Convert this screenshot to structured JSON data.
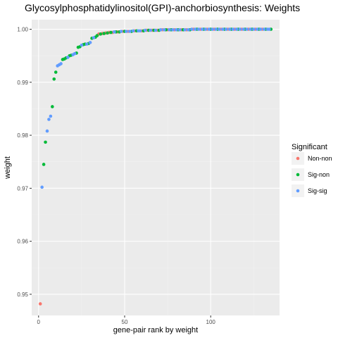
{
  "chart_data": {
    "type": "scatter",
    "title": "Glycosylphosphatidylinositol(GPI)-anchorbiosynthesis: Weights",
    "xlabel": "gene-pair rank by weight",
    "ylabel": "weight",
    "xlim": [
      -4,
      140
    ],
    "ylim": [
      0.946,
      1.0018
    ],
    "x_ticks": [
      0,
      50,
      100
    ],
    "x_tick_labels": [
      "0",
      "50",
      "100"
    ],
    "y_ticks": [
      0.95,
      0.96,
      0.97,
      0.98,
      0.99,
      1.0
    ],
    "y_tick_labels": [
      "0.95",
      "0.96",
      "0.97",
      "0.98",
      "0.99",
      "1.00"
    ],
    "grid": true,
    "legend": {
      "title": "Significant",
      "position": "right",
      "entries": [
        {
          "name": "Non-non",
          "color": "#F8766D"
        },
        {
          "name": "Sig-non",
          "color": "#00BA38"
        },
        {
          "name": "Sig-sig",
          "color": "#619CFF"
        }
      ]
    },
    "series": [
      {
        "name": "Non-non",
        "color": "#F8766D",
        "points": [
          [
            1,
            0.9482
          ],
          [
            35,
            0.9991
          ],
          [
            37,
            0.9992
          ],
          [
            39,
            0.9993
          ],
          [
            41,
            0.9994
          ],
          [
            43,
            0.9994
          ],
          [
            46,
            0.9995
          ],
          [
            49,
            0.9996
          ],
          [
            52,
            0.9996
          ],
          [
            56,
            0.9997
          ],
          [
            60,
            0.9997
          ],
          [
            63,
            0.9998
          ],
          [
            66,
            0.9998
          ],
          [
            69,
            0.9998
          ],
          [
            72,
            0.9999
          ],
          [
            75,
            0.9999
          ],
          [
            79,
            0.9999
          ],
          [
            83,
            0.9999
          ],
          [
            86,
            0.9999
          ],
          [
            90,
            1.0
          ],
          [
            94,
            1.0
          ],
          [
            98,
            1.0
          ],
          [
            102,
            1.0
          ],
          [
            106,
            1.0
          ],
          [
            110,
            1.0
          ],
          [
            114,
            1.0
          ],
          [
            118,
            1.0
          ],
          [
            122,
            1.0
          ],
          [
            126,
            1.0
          ],
          [
            130,
            1.0
          ]
        ]
      },
      {
        "name": "Sig-non",
        "color": "#00BA38",
        "points": [
          [
            3,
            0.9745
          ],
          [
            4,
            0.9787
          ],
          [
            8,
            0.9854
          ],
          [
            9,
            0.9906
          ],
          [
            10,
            0.9919
          ],
          [
            14,
            0.9943
          ],
          [
            15,
            0.9944
          ],
          [
            16,
            0.9946
          ],
          [
            18,
            0.995
          ],
          [
            19,
            0.9951
          ],
          [
            22,
            0.9955
          ],
          [
            23,
            0.9966
          ],
          [
            24,
            0.9967
          ],
          [
            26,
            0.9971
          ],
          [
            27,
            0.9972
          ],
          [
            29,
            0.9973
          ],
          [
            31,
            0.9983
          ],
          [
            33,
            0.9985
          ],
          [
            34,
            0.9988
          ],
          [
            36,
            0.9991
          ],
          [
            38,
            0.9992
          ],
          [
            40,
            0.9993
          ],
          [
            42,
            0.9994
          ],
          [
            45,
            0.9995
          ],
          [
            47,
            0.9995
          ],
          [
            50,
            0.9996
          ],
          [
            54,
            0.9996
          ],
          [
            57,
            0.9997
          ],
          [
            61,
            0.9997
          ],
          [
            64,
            0.9998
          ],
          [
            67,
            0.9998
          ],
          [
            70,
            0.9998
          ],
          [
            74,
            0.9999
          ],
          [
            77,
            0.9999
          ],
          [
            81,
            0.9999
          ],
          [
            84,
            0.9999
          ],
          [
            88,
            0.9999
          ],
          [
            92,
            1.0
          ],
          [
            96,
            1.0
          ],
          [
            100,
            1.0
          ],
          [
            104,
            1.0
          ],
          [
            108,
            1.0
          ],
          [
            112,
            1.0
          ],
          [
            116,
            1.0
          ],
          [
            120,
            1.0
          ],
          [
            124,
            1.0
          ],
          [
            128,
            1.0
          ],
          [
            132,
            1.0
          ],
          [
            135,
            1.0
          ]
        ]
      },
      {
        "name": "Sig-sig",
        "color": "#619CFF",
        "points": [
          [
            2,
            0.9702
          ],
          [
            5,
            0.9808
          ],
          [
            6,
            0.983
          ],
          [
            7,
            0.9836
          ],
          [
            11,
            0.9931
          ],
          [
            12,
            0.9933
          ],
          [
            13,
            0.9935
          ],
          [
            17,
            0.9947
          ],
          [
            20,
            0.9952
          ],
          [
            21,
            0.9954
          ],
          [
            25,
            0.997
          ],
          [
            28,
            0.9972
          ],
          [
            30,
            0.9975
          ],
          [
            32,
            0.9984
          ],
          [
            44,
            0.9995
          ],
          [
            48,
            0.9996
          ],
          [
            51,
            0.9996
          ],
          [
            53,
            0.9996
          ],
          [
            55,
            0.9997
          ],
          [
            58,
            0.9997
          ],
          [
            59,
            0.9997
          ],
          [
            62,
            0.9998
          ],
          [
            65,
            0.9998
          ],
          [
            68,
            0.9998
          ],
          [
            71,
            0.9999
          ],
          [
            73,
            0.9999
          ],
          [
            76,
            0.9999
          ],
          [
            78,
            0.9999
          ],
          [
            80,
            0.9999
          ],
          [
            82,
            0.9999
          ],
          [
            85,
            0.9999
          ],
          [
            87,
            0.9999
          ],
          [
            89,
            1.0
          ],
          [
            91,
            1.0
          ],
          [
            93,
            1.0
          ],
          [
            95,
            1.0
          ],
          [
            97,
            1.0
          ],
          [
            99,
            1.0
          ],
          [
            101,
            1.0
          ],
          [
            103,
            1.0
          ],
          [
            105,
            1.0
          ],
          [
            107,
            1.0
          ],
          [
            109,
            1.0
          ],
          [
            111,
            1.0
          ],
          [
            113,
            1.0
          ],
          [
            115,
            1.0
          ],
          [
            117,
            1.0
          ],
          [
            119,
            1.0
          ],
          [
            121,
            1.0
          ],
          [
            123,
            1.0
          ],
          [
            125,
            1.0
          ],
          [
            127,
            1.0
          ],
          [
            129,
            1.0
          ],
          [
            131,
            1.0
          ],
          [
            133,
            1.0
          ],
          [
            134,
            1.0
          ]
        ]
      }
    ]
  }
}
